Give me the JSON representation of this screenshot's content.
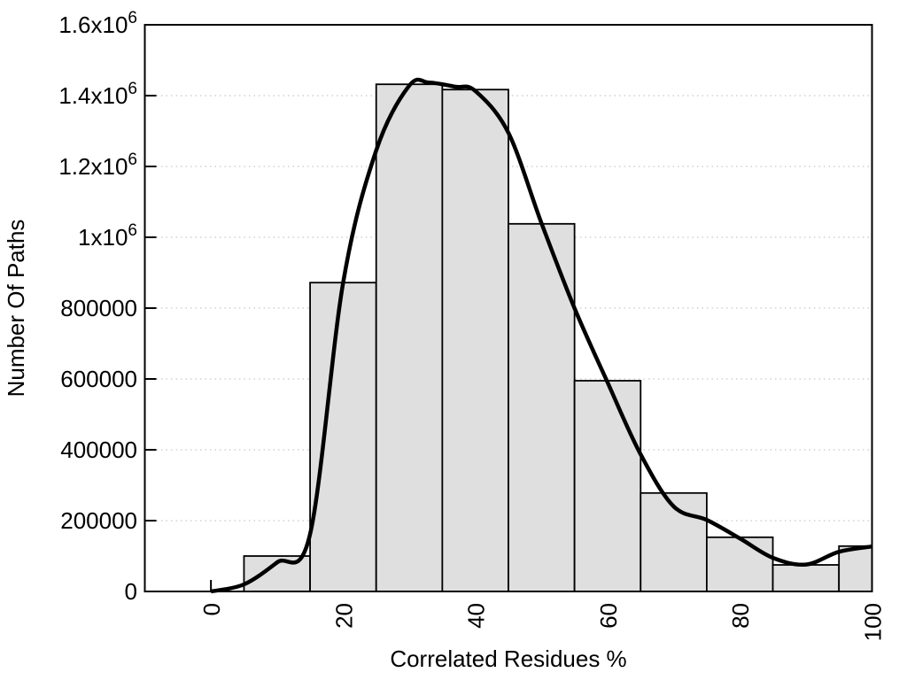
{
  "chart_data": {
    "type": "bar",
    "subtype": "histogram-with-smooth-curve",
    "title": "",
    "xlabel": "Correlated Residues %",
    "ylabel": "Number Of Paths",
    "xlim": [
      -10,
      100
    ],
    "ylim": [
      0,
      1600000
    ],
    "grid": "horizontal dotted lines at y ticks",
    "legend": "none",
    "xticks": [
      {
        "v": 0,
        "label": "0"
      },
      {
        "v": 20,
        "label": "20"
      },
      {
        "v": 40,
        "label": "40"
      },
      {
        "v": 60,
        "label": "60"
      },
      {
        "v": 80,
        "label": "80"
      },
      {
        "v": 100,
        "label": "100"
      }
    ],
    "yticks": [
      {
        "v": 0,
        "label": "0"
      },
      {
        "v": 200000,
        "label": "200000"
      },
      {
        "v": 400000,
        "label": "400000"
      },
      {
        "v": 600000,
        "label": "600000"
      },
      {
        "v": 800000,
        "label": "800000"
      },
      {
        "v": 1000000,
        "label": "1x10^6"
      },
      {
        "v": 1200000,
        "label": "1.2x10^6"
      },
      {
        "v": 1400000,
        "label": "1.4x10^6"
      },
      {
        "v": 1600000,
        "label": "1.6x10^6"
      }
    ],
    "bars": {
      "bin_width": 10,
      "centers": [
        10,
        20,
        30,
        40,
        50,
        60,
        70,
        80,
        90,
        100
      ],
      "values": [
        100000,
        872000,
        1432000,
        1417000,
        1038000,
        595000,
        278000,
        153000,
        75000,
        128000
      ],
      "clip_x_max": 100,
      "fill": "#dfdfdf",
      "stroke": "#000000"
    },
    "curve": {
      "description": "smooth spline through histogram, clipped to x range 0-100",
      "color": "#000000",
      "stroke_width": 4.5,
      "points": [
        [
          0,
          0
        ],
        [
          5,
          20000
        ],
        [
          10,
          82000
        ],
        [
          15,
          162000
        ],
        [
          20,
          872000
        ],
        [
          25,
          1245000
        ],
        [
          30,
          1428000
        ],
        [
          33,
          1437000
        ],
        [
          37,
          1425000
        ],
        [
          40,
          1413000
        ],
        [
          45,
          1295000
        ],
        [
          50,
          1040000
        ],
        [
          55,
          800000
        ],
        [
          60,
          590000
        ],
        [
          65,
          387000
        ],
        [
          70,
          240000
        ],
        [
          75,
          202000
        ],
        [
          80,
          150000
        ],
        [
          85,
          95000
        ],
        [
          90,
          76000
        ],
        [
          95,
          112000
        ],
        [
          100,
          127000
        ]
      ]
    },
    "colors": {
      "background": "#ffffff",
      "grid": "#c8c8c8",
      "axis": "#000000",
      "text": "#000000"
    }
  }
}
